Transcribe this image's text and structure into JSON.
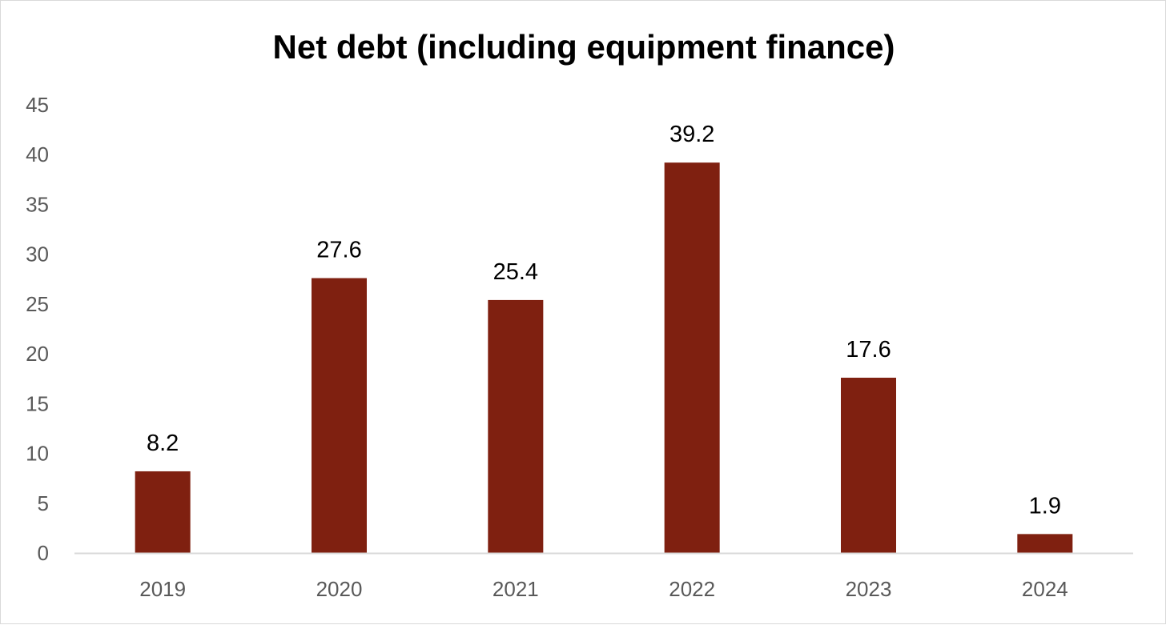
{
  "chart_data": {
    "type": "bar",
    "title": "Net debt (including equipment finance)",
    "xlabel": "",
    "ylabel": "",
    "categories": [
      "2019",
      "2020",
      "2021",
      "2022",
      "2023",
      "2024"
    ],
    "values": [
      8.2,
      27.6,
      25.4,
      39.2,
      17.6,
      1.9
    ],
    "data_labels": [
      "8.2",
      "27.6",
      "25.4",
      "39.2",
      "17.6",
      "1.9"
    ],
    "ylim": [
      0,
      45
    ],
    "yticks": [
      0,
      5,
      10,
      15,
      20,
      25,
      30,
      35,
      40,
      45
    ],
    "grid": false,
    "legend": "none",
    "colors": {
      "bar": "#7f2010",
      "axis": "#d9d9d9",
      "tick_text": "#595959",
      "label_text": "#000000"
    }
  }
}
